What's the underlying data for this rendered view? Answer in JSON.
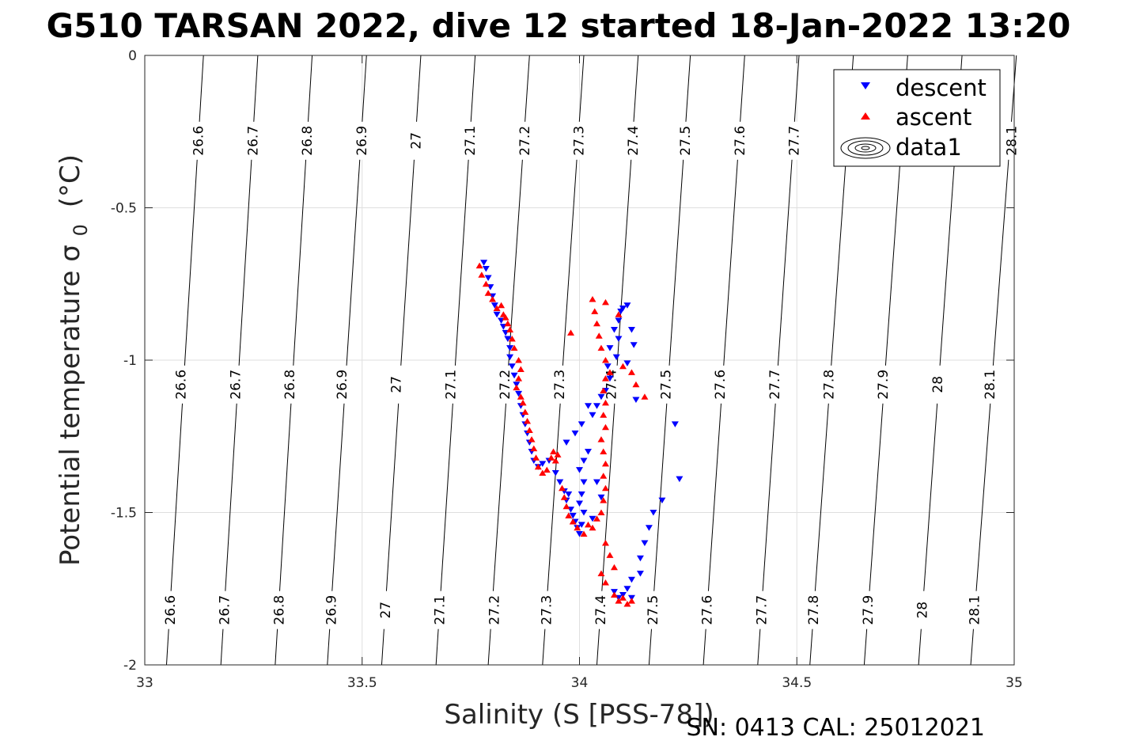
{
  "chart_data": {
    "type": "scatter",
    "title": "G510 TARSAN 2022, dive 12 started 18-Jan-2022 13:20",
    "xlabel": "Salinity (S [PSS-78])",
    "ylabel_main": "Potential temperature σ",
    "ylabel_sub": "0",
    "ylabel_unit": "(°C)",
    "xlim": [
      33,
      35
    ],
    "ylim": [
      -2,
      0
    ],
    "xticks": [
      33,
      33.5,
      34,
      34.5,
      35
    ],
    "xtick_labels": [
      "33",
      "33.5",
      "34",
      "34.5",
      "35"
    ],
    "yticks": [
      0,
      -0.5,
      -1,
      -1.5,
      -2
    ],
    "ytick_labels": [
      "0",
      "-0.5",
      "-1",
      "-1.5",
      "-2"
    ],
    "grid": true,
    "legend_placement": "top-right",
    "legend": [
      {
        "label": "descent",
        "marker": "triangle-down",
        "color": "#0000ff"
      },
      {
        "label": "ascent",
        "marker": "triangle-up",
        "color": "#ff0000"
      },
      {
        "label": "data1",
        "marker": "contour",
        "color": "#000000"
      }
    ],
    "isopycnals": [
      {
        "value": 26.6,
        "s_at_0": 33.135,
        "s_at_m2": 33.05
      },
      {
        "value": 26.7,
        "s_at_0": 33.26,
        "s_at_m2": 33.175
      },
      {
        "value": 26.8,
        "s_at_0": 33.385,
        "s_at_m2": 33.3
      },
      {
        "value": 26.9,
        "s_at_0": 33.51,
        "s_at_m2": 33.42
      },
      {
        "value": 27,
        "s_at_0": 33.635,
        "s_at_m2": 33.545
      },
      {
        "value": 27.1,
        "s_at_0": 33.76,
        "s_at_m2": 33.67
      },
      {
        "value": 27.2,
        "s_at_0": 33.885,
        "s_at_m2": 33.79
      },
      {
        "value": 27.3,
        "s_at_0": 34.01,
        "s_at_m2": 33.915
      },
      {
        "value": 27.4,
        "s_at_0": 34.135,
        "s_at_m2": 34.04
      },
      {
        "value": 27.5,
        "s_at_0": 34.255,
        "s_at_m2": 34.16
      },
      {
        "value": 27.6,
        "s_at_0": 34.38,
        "s_at_m2": 34.285
      },
      {
        "value": 27.7,
        "s_at_0": 34.505,
        "s_at_m2": 34.41
      },
      {
        "value": 27.8,
        "s_at_0": 34.63,
        "s_at_m2": 34.53
      },
      {
        "value": 27.9,
        "s_at_0": 34.755,
        "s_at_m2": 34.655
      },
      {
        "value": 28,
        "s_at_0": 34.88,
        "s_at_m2": 34.78
      },
      {
        "value": 28.1,
        "s_at_0": 35.005,
        "s_at_m2": 34.9
      }
    ],
    "isopycnal_labels": [
      {
        "text": "26.6",
        "s": 33.125,
        "t": -0.28
      },
      {
        "text": "26.7",
        "s": 33.25,
        "t": -0.28
      },
      {
        "text": "26.8",
        "s": 33.375,
        "t": -0.28
      },
      {
        "text": "26.9",
        "s": 33.5,
        "t": -0.28
      },
      {
        "text": "27",
        "s": 33.625,
        "t": -0.28
      },
      {
        "text": "27.1",
        "s": 33.75,
        "t": -0.28
      },
      {
        "text": "27.2",
        "s": 33.875,
        "t": -0.28
      },
      {
        "text": "27.3",
        "s": 34.0,
        "t": -0.28
      },
      {
        "text": "27.4",
        "s": 34.125,
        "t": -0.28
      },
      {
        "text": "27.5",
        "s": 34.245,
        "t": -0.28
      },
      {
        "text": "27.6",
        "s": 34.37,
        "t": -0.28
      },
      {
        "text": "27.7",
        "s": 34.495,
        "t": -0.28
      },
      {
        "text": "28.1",
        "s": 34.995,
        "t": -0.28
      },
      {
        "text": "26.6",
        "s": 33.085,
        "t": -1.08
      },
      {
        "text": "26.7",
        "s": 33.21,
        "t": -1.08
      },
      {
        "text": "26.8",
        "s": 33.335,
        "t": -1.08
      },
      {
        "text": "26.9",
        "s": 33.455,
        "t": -1.08
      },
      {
        "text": "27",
        "s": 33.58,
        "t": -1.08
      },
      {
        "text": "27.1",
        "s": 33.705,
        "t": -1.08
      },
      {
        "text": "27.2",
        "s": 33.83,
        "t": -1.08
      },
      {
        "text": "27.3",
        "s": 33.955,
        "t": -1.08
      },
      {
        "text": "27.4",
        "s": 34.075,
        "t": -1.08
      },
      {
        "text": "27.5",
        "s": 34.2,
        "t": -1.08
      },
      {
        "text": "27.6",
        "s": 34.325,
        "t": -1.08
      },
      {
        "text": "27.7",
        "s": 34.45,
        "t": -1.08
      },
      {
        "text": "27.8",
        "s": 34.575,
        "t": -1.08
      },
      {
        "text": "27.9",
        "s": 34.7,
        "t": -1.08
      },
      {
        "text": "28",
        "s": 34.825,
        "t": -1.08
      },
      {
        "text": "28.1",
        "s": 34.945,
        "t": -1.08
      },
      {
        "text": "26.6",
        "s": 33.06,
        "t": -1.82
      },
      {
        "text": "26.7",
        "s": 33.185,
        "t": -1.82
      },
      {
        "text": "26.8",
        "s": 33.31,
        "t": -1.82
      },
      {
        "text": "26.9",
        "s": 33.43,
        "t": -1.82
      },
      {
        "text": "27",
        "s": 33.555,
        "t": -1.82
      },
      {
        "text": "27.1",
        "s": 33.68,
        "t": -1.82
      },
      {
        "text": "27.2",
        "s": 33.805,
        "t": -1.82
      },
      {
        "text": "27.3",
        "s": 33.925,
        "t": -1.82
      },
      {
        "text": "27.4",
        "s": 34.05,
        "t": -1.82
      },
      {
        "text": "27.5",
        "s": 34.17,
        "t": -1.82
      },
      {
        "text": "27.6",
        "s": 34.295,
        "t": -1.82
      },
      {
        "text": "27.7",
        "s": 34.42,
        "t": -1.82
      },
      {
        "text": "27.8",
        "s": 34.54,
        "t": -1.82
      },
      {
        "text": "27.9",
        "s": 34.665,
        "t": -1.82
      },
      {
        "text": "28",
        "s": 34.79,
        "t": -1.82
      },
      {
        "text": "28.1",
        "s": 34.91,
        "t": -1.82
      }
    ],
    "series": [
      {
        "name": "descent",
        "color": "#0000ff",
        "points": [
          [
            33.78,
            -0.68
          ],
          [
            33.785,
            -0.7
          ],
          [
            33.79,
            -0.73
          ],
          [
            33.795,
            -0.76
          ],
          [
            33.8,
            -0.79
          ],
          [
            33.805,
            -0.82
          ],
          [
            33.81,
            -0.85
          ],
          [
            33.82,
            -0.87
          ],
          [
            33.825,
            -0.89
          ],
          [
            33.83,
            -0.91
          ],
          [
            33.835,
            -0.93
          ],
          [
            33.84,
            -0.96
          ],
          [
            33.84,
            -0.99
          ],
          [
            33.845,
            -1.02
          ],
          [
            33.85,
            -1.05
          ],
          [
            33.855,
            -1.08
          ],
          [
            33.86,
            -1.11
          ],
          [
            33.865,
            -1.15
          ],
          [
            33.87,
            -1.18
          ],
          [
            33.875,
            -1.21
          ],
          [
            33.88,
            -1.24
          ],
          [
            33.885,
            -1.27
          ],
          [
            33.89,
            -1.3
          ],
          [
            33.895,
            -1.33
          ],
          [
            33.905,
            -1.35
          ],
          [
            33.915,
            -1.34
          ],
          [
            33.93,
            -1.33
          ],
          [
            33.945,
            -1.37
          ],
          [
            33.955,
            -1.4
          ],
          [
            33.965,
            -1.43
          ],
          [
            33.97,
            -1.46
          ],
          [
            33.975,
            -1.44
          ],
          [
            33.98,
            -1.49
          ],
          [
            33.985,
            -1.51
          ],
          [
            33.99,
            -1.53
          ],
          [
            33.995,
            -1.55
          ],
          [
            34.0,
            -1.57
          ],
          [
            34.005,
            -1.54
          ],
          [
            34.01,
            -1.5
          ],
          [
            34.0,
            -1.47
          ],
          [
            34.005,
            -1.44
          ],
          [
            34.01,
            -1.4
          ],
          [
            34.0,
            -1.36
          ],
          [
            34.01,
            -1.33
          ],
          [
            34.02,
            -1.3
          ],
          [
            33.97,
            -1.27
          ],
          [
            33.99,
            -1.24
          ],
          [
            34.005,
            -1.21
          ],
          [
            34.03,
            -1.18
          ],
          [
            34.04,
            -1.15
          ],
          [
            34.02,
            -1.15
          ],
          [
            34.05,
            -1.12
          ],
          [
            34.06,
            -1.1
          ],
          [
            34.07,
            -1.06
          ],
          [
            34.065,
            -1.02
          ],
          [
            34.085,
            -0.99
          ],
          [
            34.07,
            -0.96
          ],
          [
            34.09,
            -0.93
          ],
          [
            34.08,
            -0.9
          ],
          [
            34.09,
            -0.87
          ],
          [
            34.095,
            -0.84
          ],
          [
            34.1,
            -0.83
          ],
          [
            34.11,
            -0.82
          ],
          [
            34.12,
            -0.9
          ],
          [
            34.125,
            -0.95
          ],
          [
            34.11,
            -1.01
          ],
          [
            34.13,
            -1.13
          ],
          [
            34.04,
            -1.4
          ],
          [
            34.05,
            -1.45
          ],
          [
            34.03,
            -1.52
          ],
          [
            34.22,
            -1.21
          ],
          [
            34.23,
            -1.39
          ],
          [
            34.19,
            -1.46
          ],
          [
            34.17,
            -1.5
          ],
          [
            34.16,
            -1.55
          ],
          [
            34.15,
            -1.6
          ],
          [
            34.14,
            -1.65
          ],
          [
            34.14,
            -1.7
          ],
          [
            34.12,
            -1.72
          ],
          [
            34.11,
            -1.75
          ],
          [
            34.1,
            -1.77
          ],
          [
            34.09,
            -1.78
          ],
          [
            34.08,
            -1.76
          ],
          [
            34.12,
            -1.78
          ]
        ]
      },
      {
        "name": "ascent",
        "color": "#ff0000",
        "points": [
          [
            33.77,
            -0.69
          ],
          [
            33.775,
            -0.72
          ],
          [
            33.785,
            -0.75
          ],
          [
            33.79,
            -0.78
          ],
          [
            33.8,
            -0.8
          ],
          [
            33.81,
            -0.83
          ],
          [
            33.82,
            -0.82
          ],
          [
            33.825,
            -0.85
          ],
          [
            33.83,
            -0.86
          ],
          [
            33.835,
            -0.88
          ],
          [
            33.84,
            -0.9
          ],
          [
            33.845,
            -0.93
          ],
          [
            33.85,
            -0.96
          ],
          [
            33.86,
            -1.0
          ],
          [
            33.865,
            -1.03
          ],
          [
            33.86,
            -1.06
          ],
          [
            33.855,
            -1.09
          ],
          [
            33.865,
            -1.12
          ],
          [
            33.87,
            -1.14
          ],
          [
            33.875,
            -1.17
          ],
          [
            33.88,
            -1.2
          ],
          [
            33.885,
            -1.23
          ],
          [
            33.89,
            -1.26
          ],
          [
            33.895,
            -1.29
          ],
          [
            33.9,
            -1.32
          ],
          [
            33.905,
            -1.35
          ],
          [
            33.915,
            -1.37
          ],
          [
            33.925,
            -1.36
          ],
          [
            33.935,
            -1.32
          ],
          [
            33.94,
            -1.3
          ],
          [
            33.945,
            -1.33
          ],
          [
            33.95,
            -1.31
          ],
          [
            33.96,
            -1.42
          ],
          [
            33.965,
            -1.45
          ],
          [
            33.97,
            -1.48
          ],
          [
            33.975,
            -1.51
          ],
          [
            33.985,
            -1.53
          ],
          [
            33.995,
            -1.55
          ],
          [
            34.01,
            -1.57
          ],
          [
            34.02,
            -1.54
          ],
          [
            34.03,
            -1.55
          ],
          [
            34.04,
            -1.52
          ],
          [
            34.05,
            -1.5
          ],
          [
            34.055,
            -1.46
          ],
          [
            34.06,
            -1.42
          ],
          [
            34.055,
            -1.38
          ],
          [
            34.06,
            -1.34
          ],
          [
            34.055,
            -1.3
          ],
          [
            34.05,
            -1.26
          ],
          [
            34.06,
            -1.22
          ],
          [
            34.055,
            -1.18
          ],
          [
            34.06,
            -1.14
          ],
          [
            34.055,
            -1.1
          ],
          [
            34.06,
            -1.06
          ],
          [
            34.07,
            -1.04
          ],
          [
            34.06,
            -1.0
          ],
          [
            34.05,
            -0.96
          ],
          [
            34.045,
            -0.92
          ],
          [
            34.04,
            -0.88
          ],
          [
            34.035,
            -0.84
          ],
          [
            34.03,
            -0.8
          ],
          [
            34.06,
            -0.81
          ],
          [
            34.09,
            -0.85
          ],
          [
            33.98,
            -0.91
          ],
          [
            34.1,
            -1.02
          ],
          [
            34.12,
            -1.04
          ],
          [
            34.13,
            -1.08
          ],
          [
            34.15,
            -1.12
          ],
          [
            34.06,
            -1.6
          ],
          [
            34.07,
            -1.64
          ],
          [
            34.08,
            -1.68
          ],
          [
            34.05,
            -1.7
          ],
          [
            34.06,
            -1.73
          ],
          [
            34.08,
            -1.77
          ],
          [
            34.09,
            -1.79
          ],
          [
            34.1,
            -1.78
          ],
          [
            34.11,
            -1.8
          ],
          [
            34.12,
            -1.79
          ]
        ]
      }
    ]
  },
  "footer": {
    "serial_text": "SN: 0413  CAL: 25012021"
  }
}
